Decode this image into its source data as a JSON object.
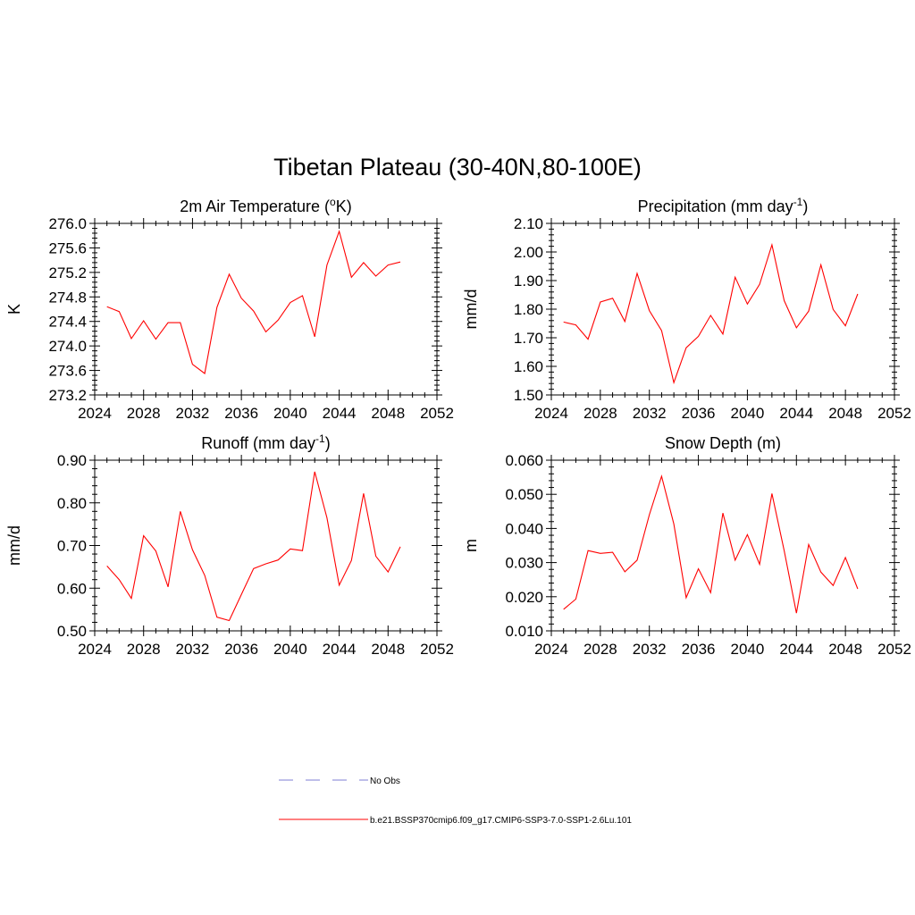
{
  "suptitle": "Tibetan Plateau (30-40N,80-100E)",
  "legend": [
    {
      "label": "No Obs",
      "color": "#9999dd",
      "dash": true
    },
    {
      "label": "b.e21.BSSP370cmip6.f09_g17.CMIP6-SSP3-7.0-SSP1-2.6Lu.101",
      "color": "#ff0000",
      "dash": false
    }
  ],
  "chart_data": [
    {
      "type": "line",
      "title": "2m Air Temperature (",
      "title_super": "o",
      "title_after": "K)",
      "ylabel": "K",
      "xlim": [
        2024,
        2052
      ],
      "ylim": [
        273.2,
        276.0
      ],
      "xticks": [
        "2024",
        "2028",
        "2032",
        "2036",
        "2040",
        "2044",
        "2048",
        "2052"
      ],
      "yticks": [
        "273.2",
        "273.6",
        "274.0",
        "274.4",
        "274.8",
        "275.2",
        "275.6",
        "276.0"
      ],
      "x": [
        2025,
        2026,
        2027,
        2028,
        2029,
        2030,
        2031,
        2032,
        2033,
        2034,
        2035,
        2036,
        2037,
        2038,
        2039,
        2040,
        2041,
        2042,
        2043,
        2044,
        2045,
        2046,
        2047,
        2048,
        2049
      ],
      "series": [
        {
          "color": "#ff0000",
          "values": [
            274.64,
            274.56,
            274.12,
            274.41,
            274.11,
            274.38,
            274.38,
            273.7,
            273.55,
            274.63,
            275.17,
            274.78,
            274.57,
            274.23,
            274.42,
            274.71,
            274.82,
            274.15,
            275.32,
            275.87,
            275.12,
            275.36,
            275.14,
            275.32,
            275.37
          ]
        }
      ]
    },
    {
      "type": "line",
      "title": "Precipitation (mm day",
      "title_super": "-1",
      "title_after": ")",
      "ylabel": "mm/d",
      "xlim": [
        2024,
        2052
      ],
      "ylim": [
        1.5,
        2.1
      ],
      "xticks": [
        "2024",
        "2028",
        "2032",
        "2036",
        "2040",
        "2044",
        "2048",
        "2052"
      ],
      "yticks": [
        "1.50",
        "1.60",
        "1.70",
        "1.80",
        "1.90",
        "2.00",
        "2.10"
      ],
      "x": [
        2025,
        2026,
        2027,
        2028,
        2029,
        2030,
        2031,
        2032,
        2033,
        2034,
        2035,
        2036,
        2037,
        2038,
        2039,
        2040,
        2041,
        2042,
        2043,
        2044,
        2045,
        2046,
        2047,
        2048,
        2049
      ],
      "series": [
        {
          "color": "#ff0000",
          "values": [
            1.755,
            1.745,
            1.695,
            1.825,
            1.838,
            1.757,
            1.925,
            1.795,
            1.725,
            1.543,
            1.665,
            1.705,
            1.778,
            1.713,
            1.912,
            1.818,
            1.887,
            2.025,
            1.83,
            1.735,
            1.793,
            1.955,
            1.799,
            1.742,
            1.853
          ]
        }
      ]
    },
    {
      "type": "line",
      "title": "Runoff (mm day",
      "title_super": "-1",
      "title_after": ")",
      "ylabel": "mm/d",
      "xlim": [
        2024,
        2052
      ],
      "ylim": [
        0.5,
        0.9
      ],
      "xticks": [
        "2024",
        "2028",
        "2032",
        "2036",
        "2040",
        "2044",
        "2048",
        "2052"
      ],
      "yticks": [
        "0.50",
        "0.60",
        "0.70",
        "0.80",
        "0.90"
      ],
      "x": [
        2025,
        2026,
        2027,
        2028,
        2029,
        2030,
        2031,
        2032,
        2033,
        2034,
        2035,
        2036,
        2037,
        2038,
        2039,
        2040,
        2041,
        2042,
        2043,
        2044,
        2045,
        2046,
        2047,
        2048,
        2049
      ],
      "series": [
        {
          "color": "#ff0000",
          "values": [
            0.652,
            0.62,
            0.576,
            0.723,
            0.687,
            0.603,
            0.78,
            0.69,
            0.63,
            0.532,
            0.524,
            0.585,
            0.646,
            0.657,
            0.666,
            0.692,
            0.688,
            0.873,
            0.765,
            0.607,
            0.665,
            0.822,
            0.675,
            0.638,
            0.697
          ]
        }
      ]
    },
    {
      "type": "line",
      "title": "Snow Depth (m)",
      "title_super": "",
      "title_after": "",
      "ylabel": "m",
      "xlim": [
        2024,
        2052
      ],
      "ylim": [
        0.01,
        0.06
      ],
      "xticks": [
        "2024",
        "2028",
        "2032",
        "2036",
        "2040",
        "2044",
        "2048",
        "2052"
      ],
      "yticks": [
        "0.010",
        "0.020",
        "0.030",
        "0.040",
        "0.050",
        "0.060"
      ],
      "x": [
        2025,
        2026,
        2027,
        2028,
        2029,
        2030,
        2031,
        2032,
        2033,
        2034,
        2035,
        2036,
        2037,
        2038,
        2039,
        2040,
        2041,
        2042,
        2043,
        2044,
        2045,
        2046,
        2047,
        2048,
        2049
      ],
      "series": [
        {
          "color": "#ff0000",
          "values": [
            0.0163,
            0.0193,
            0.0335,
            0.0327,
            0.033,
            0.0273,
            0.0307,
            0.044,
            0.0553,
            0.0413,
            0.0197,
            0.0282,
            0.0212,
            0.0445,
            0.0307,
            0.0382,
            0.0295,
            0.0502,
            0.0335,
            0.0152,
            0.0353,
            0.0272,
            0.0233,
            0.0315,
            0.0223
          ]
        }
      ]
    }
  ]
}
